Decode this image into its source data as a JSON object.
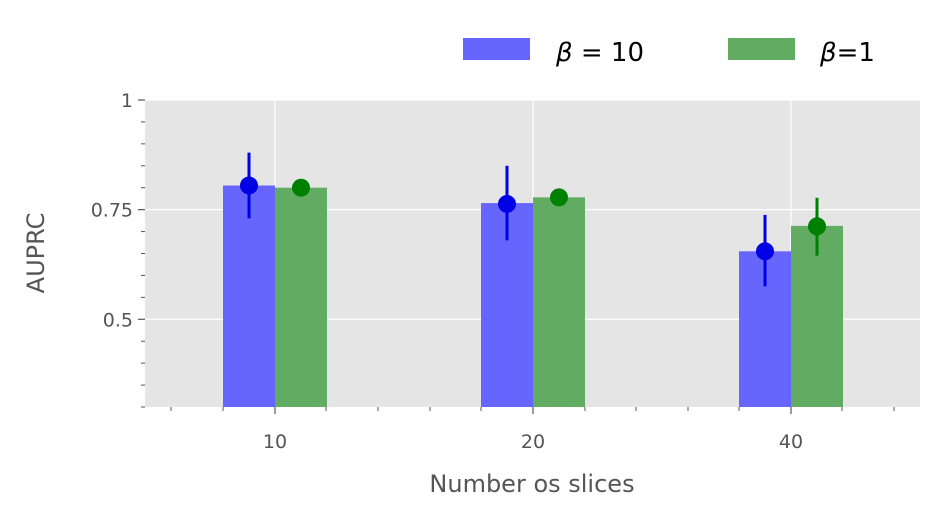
{
  "chart_data": {
    "type": "bar",
    "categories": [
      "10",
      "20",
      "40"
    ],
    "xlabel": "Number os slices",
    "ylabel": "AUPRC",
    "ylim": [
      0.3,
      1.0
    ],
    "yticks": [
      0.5,
      0.75,
      1
    ],
    "ytick_labels": [
      "0.5",
      "0.75",
      "1"
    ],
    "grid": true,
    "legend_position": "top-right",
    "series": [
      {
        "name": "β = 10",
        "legend_parts": [
          "β",
          " = 10"
        ],
        "color": "#6666ff",
        "marker_color": "#0000e6",
        "values": [
          0.805,
          0.765,
          0.655
        ],
        "markers": [
          0.805,
          0.763,
          0.655
        ],
        "err_low": [
          0.73,
          0.68,
          0.575
        ],
        "err_high": [
          0.88,
          0.85,
          0.738
        ]
      },
      {
        "name": "β=1",
        "legend_parts": [
          "β",
          "=1"
        ],
        "color": "#62ab62",
        "marker_color": "#008000",
        "values": [
          0.8,
          0.778,
          0.713
        ],
        "markers": [
          0.8,
          0.778,
          0.712
        ],
        "err_low": [
          0.8,
          0.778,
          0.645
        ],
        "err_high": [
          0.8,
          0.778,
          0.777
        ]
      }
    ]
  }
}
